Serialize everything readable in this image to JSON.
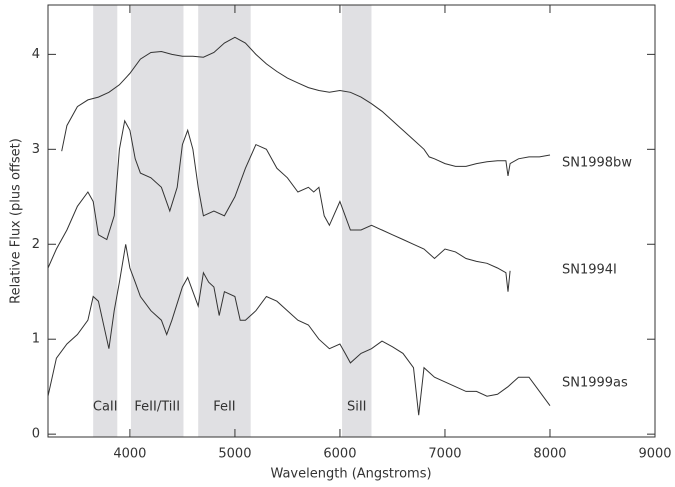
{
  "chart_data": {
    "type": "line",
    "x_label": "Wavelength (Angstroms)",
    "y_label": "Relative Flux (plus offset)",
    "xlim": [
      3220,
      9000
    ],
    "ylim": [
      -0.03,
      4.52
    ],
    "xticks": [
      4000,
      5000,
      6000,
      7000,
      8000,
      9000
    ],
    "yticks": [
      0,
      1,
      2,
      3,
      4
    ],
    "color": "#333333",
    "band_color": "#e0e0e3",
    "bands": [
      {
        "label": "CaII",
        "range": [
          3650,
          3880
        ]
      },
      {
        "label": "FeII/TiII",
        "range": [
          4010,
          4510
        ]
      },
      {
        "label": "FeII",
        "range": [
          4650,
          5150
        ]
      },
      {
        "label": "SiII",
        "range": [
          6020,
          6300
        ]
      }
    ],
    "series": [
      {
        "name": "SN1998bw",
        "x": [
          3350,
          3400,
          3500,
          3600,
          3700,
          3800,
          3900,
          4000,
          4100,
          4200,
          4300,
          4400,
          4500,
          4600,
          4700,
          4800,
          4900,
          5000,
          5100,
          5200,
          5300,
          5400,
          5500,
          5600,
          5700,
          5800,
          5900,
          6000,
          6100,
          6200,
          6300,
          6400,
          6500,
          6600,
          6700,
          6800,
          6850,
          6900,
          7000,
          7100,
          7200,
          7300,
          7400,
          7500,
          7580,
          7600,
          7620,
          7700,
          7800,
          7900,
          8000
        ],
        "values": [
          2.98,
          3.25,
          3.45,
          3.52,
          3.55,
          3.6,
          3.68,
          3.8,
          3.95,
          4.02,
          4.03,
          4.0,
          3.98,
          3.98,
          3.97,
          4.02,
          4.12,
          4.18,
          4.12,
          4.0,
          3.9,
          3.82,
          3.75,
          3.7,
          3.65,
          3.62,
          3.6,
          3.62,
          3.6,
          3.55,
          3.48,
          3.4,
          3.3,
          3.2,
          3.1,
          3.0,
          2.92,
          2.9,
          2.85,
          2.82,
          2.82,
          2.85,
          2.87,
          2.88,
          2.88,
          2.72,
          2.85,
          2.9,
          2.92,
          2.92,
          2.94
        ]
      },
      {
        "name": "SN1994I",
        "x": [
          3220,
          3300,
          3400,
          3500,
          3600,
          3650,
          3700,
          3780,
          3850,
          3900,
          3950,
          4000,
          4050,
          4100,
          4200,
          4300,
          4380,
          4450,
          4500,
          4550,
          4600,
          4650,
          4700,
          4800,
          4900,
          5000,
          5100,
          5200,
          5300,
          5400,
          5500,
          5600,
          5700,
          5750,
          5800,
          5850,
          5900,
          6000,
          6100,
          6200,
          6300,
          6400,
          6500,
          6600,
          6700,
          6800,
          6900,
          7000,
          7100,
          7200,
          7300,
          7400,
          7500,
          7580,
          7600,
          7620
        ],
        "values": [
          1.75,
          1.95,
          2.15,
          2.4,
          2.55,
          2.45,
          2.1,
          2.05,
          2.3,
          3.0,
          3.3,
          3.2,
          2.9,
          2.75,
          2.7,
          2.6,
          2.35,
          2.6,
          3.05,
          3.2,
          3.0,
          2.6,
          2.3,
          2.35,
          2.3,
          2.5,
          2.8,
          3.05,
          3.0,
          2.8,
          2.7,
          2.55,
          2.6,
          2.55,
          2.6,
          2.3,
          2.2,
          2.45,
          2.15,
          2.15,
          2.2,
          2.15,
          2.1,
          2.05,
          2.0,
          1.95,
          1.85,
          1.95,
          1.92,
          1.85,
          1.82,
          1.8,
          1.75,
          1.7,
          1.5,
          1.72
        ]
      },
      {
        "name": "SN1999as",
        "x": [
          3220,
          3300,
          3400,
          3500,
          3600,
          3650,
          3700,
          3760,
          3800,
          3850,
          3900,
          3960,
          4000,
          4050,
          4100,
          4200,
          4300,
          4350,
          4400,
          4500,
          4550,
          4600,
          4650,
          4700,
          4750,
          4800,
          4850,
          4900,
          5000,
          5050,
          5100,
          5200,
          5300,
          5400,
          5500,
          5600,
          5700,
          5800,
          5900,
          6000,
          6050,
          6100,
          6200,
          6300,
          6400,
          6500,
          6600,
          6700,
          6750,
          6800,
          6900,
          7000,
          7100,
          7200,
          7300,
          7400,
          7500,
          7600,
          7700,
          7800,
          7900,
          8000
        ],
        "values": [
          0.4,
          0.8,
          0.95,
          1.05,
          1.2,
          1.45,
          1.4,
          1.1,
          0.9,
          1.3,
          1.6,
          2.0,
          1.75,
          1.6,
          1.45,
          1.3,
          1.2,
          1.05,
          1.2,
          1.55,
          1.65,
          1.5,
          1.35,
          1.7,
          1.6,
          1.55,
          1.25,
          1.5,
          1.45,
          1.2,
          1.2,
          1.3,
          1.45,
          1.4,
          1.3,
          1.2,
          1.15,
          1.0,
          0.9,
          0.95,
          0.85,
          0.75,
          0.85,
          0.9,
          0.98,
          0.92,
          0.85,
          0.7,
          0.2,
          0.7,
          0.6,
          0.55,
          0.5,
          0.45,
          0.45,
          0.4,
          0.42,
          0.5,
          0.6,
          0.6,
          0.45,
          0.3
        ]
      }
    ]
  }
}
